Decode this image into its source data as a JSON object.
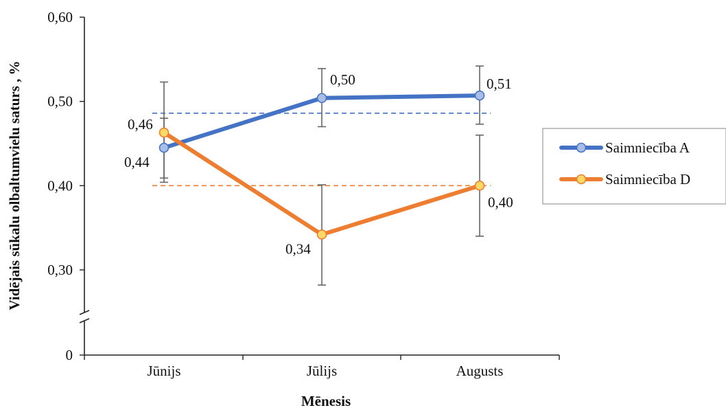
{
  "chart_data": {
    "type": "line",
    "title": "",
    "xlabel": "Mēnesis",
    "ylabel": "Vidējais sūkalu olbaltumvielu saturs , %",
    "categories": [
      "Jūnijs",
      "Jūlijs",
      "Augusts"
    ],
    "y_ticks": [
      "0",
      "0,30",
      "0,40",
      "0,50",
      "0,60"
    ],
    "ylim": [
      0.3,
      0.6
    ],
    "axis_break": true,
    "legend_position": "right",
    "series": [
      {
        "name": "Saimniecība A",
        "color": "#4472C4",
        "values": [
          0.445,
          0.504,
          0.507
        ],
        "error_low": [
          0.404,
          0.47,
          0.473
        ],
        "error_high": [
          0.523,
          0.539,
          0.542
        ],
        "data_labels": [
          "0,44",
          "0,50",
          "0,51"
        ],
        "mean_line": 0.486
      },
      {
        "name": "Saimniecība D",
        "color": "#ED7D31",
        "values": [
          0.463,
          0.342,
          0.4
        ],
        "error_low": [
          0.409,
          0.282,
          0.34
        ],
        "error_high": [
          0.48,
          0.401,
          0.46
        ],
        "data_labels": [
          "0,46",
          "0,34",
          "0,40"
        ],
        "mean_line": 0.4
      }
    ]
  }
}
